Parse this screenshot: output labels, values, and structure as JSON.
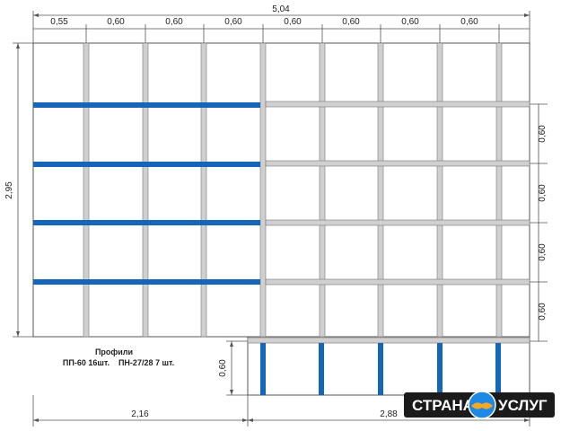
{
  "diagram": {
    "top_total": "5,04",
    "top_segments": [
      "0,55",
      "0,60",
      "0,60",
      "0,60",
      "0,60",
      "0,60",
      "0,60",
      "0,60"
    ],
    "left_height": "2,95",
    "right_segments": [
      "0,60",
      "0,60",
      "0,60",
      "0,60"
    ],
    "lower_height": "0,60",
    "bottom_left": "2,16",
    "bottom_right": "2,88"
  },
  "legend": {
    "title": "Профили",
    "line": "ПП-60 16шт.    ПН-27/28 7 шт."
  },
  "logo": {
    "left_word": "СТРАНА",
    "right_word": "УСЛУГ"
  },
  "colors": {
    "blue_profile": "#1565b8",
    "gray_profile": "#d0d0d0",
    "outline": "#555555",
    "logo_bg": "#1b1b1b",
    "logo_circle": "#1e88e5",
    "logo_hand": "#f5a623"
  }
}
